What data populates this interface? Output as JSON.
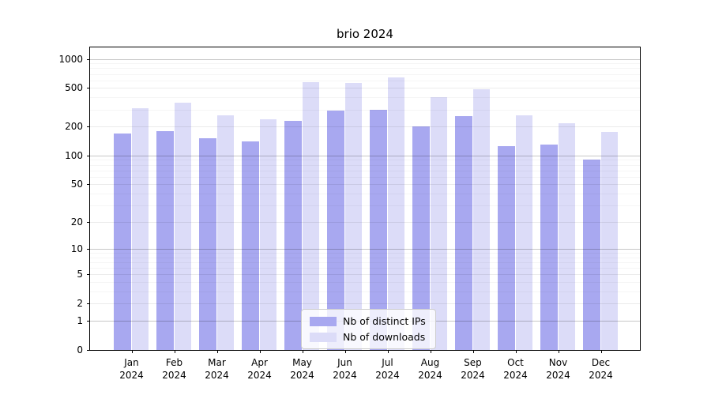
{
  "title": "brio 2024",
  "colors": {
    "distinct_ips": "#a8a8f0",
    "downloads": "#dcdcf8",
    "grid_decade": "rgba(0,0,0,0.22)",
    "grid_major": "rgba(0,0,0,0.08)",
    "grid_minor": "rgba(0,0,0,0.04)",
    "axis": "#000000",
    "background": "#ffffff"
  },
  "legend": {
    "position": "lower center",
    "items": [
      {
        "label": "Nb of distinct IPs",
        "series": "distinct_ips"
      },
      {
        "label": "Nb of downloads",
        "series": "downloads"
      }
    ]
  },
  "chart_data": {
    "type": "bar",
    "title": "brio 2024",
    "xlabel": "",
    "ylabel": "",
    "y_scale": "log1p",
    "grid": true,
    "categories": [
      "Jan 2024",
      "Feb 2024",
      "Mar 2024",
      "Apr 2024",
      "May 2024",
      "Jun 2024",
      "Jul 2024",
      "Aug 2024",
      "Sep 2024",
      "Oct 2024",
      "Nov 2024",
      "Dec 2024"
    ],
    "series": [
      {
        "name": "Nb of distinct IPs",
        "color": "#a8a8f0",
        "values": [
          170,
          180,
          150,
          140,
          230,
          295,
          300,
          200,
          255,
          125,
          130,
          90
        ]
      },
      {
        "name": "Nb of downloads",
        "color": "#dcdcf8",
        "values": [
          310,
          350,
          260,
          240,
          580,
          565,
          640,
          400,
          490,
          260,
          215,
          175
        ]
      }
    ],
    "y_ticks": [
      0,
      1,
      2,
      5,
      10,
      20,
      50,
      100,
      200,
      500,
      1000
    ],
    "y_decade_ticks": [
      1,
      10,
      100,
      1000
    ],
    "ylim": [
      0,
      1330
    ]
  }
}
